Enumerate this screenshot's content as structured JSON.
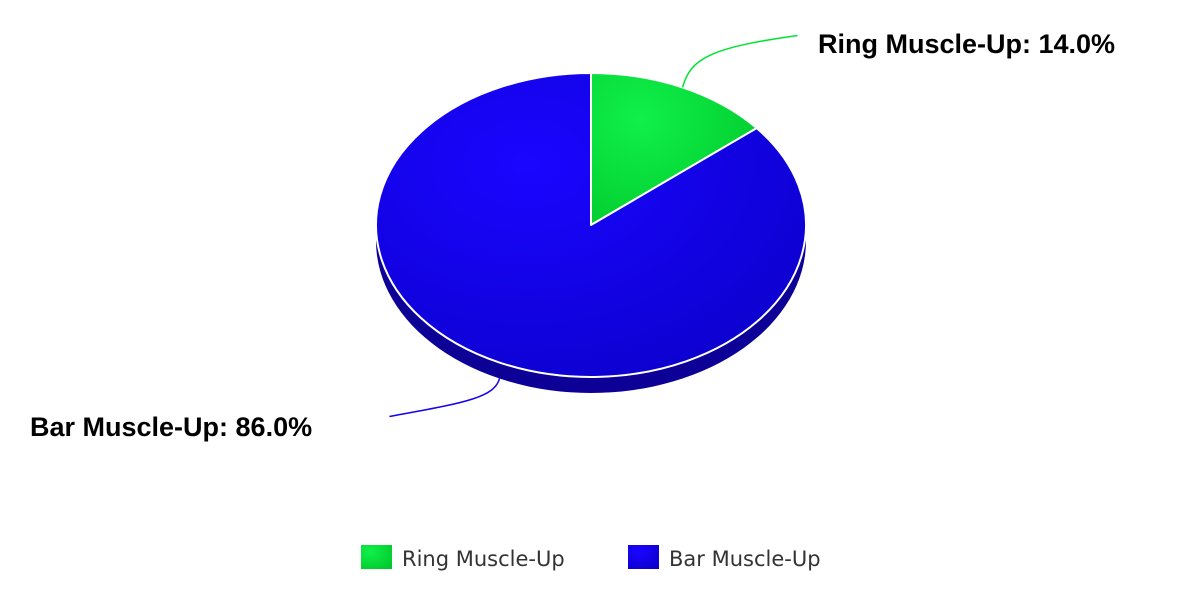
{
  "chart_data": {
    "type": "pie",
    "subtype": "3d",
    "title": "",
    "categories": [
      "Ring Muscle-Up",
      "Bar Muscle-Up"
    ],
    "values": [
      14.0,
      86.0
    ],
    "unit": "%",
    "colors": [
      "#00e335",
      "#1500f0"
    ],
    "data_labels": [
      "Ring Muscle-Up: 14.0%",
      "Bar Muscle-Up: 86.0%"
    ],
    "legend": {
      "placement": "bottom",
      "items": [
        "Ring Muscle-Up",
        "Bar Muscle-Up"
      ]
    }
  }
}
